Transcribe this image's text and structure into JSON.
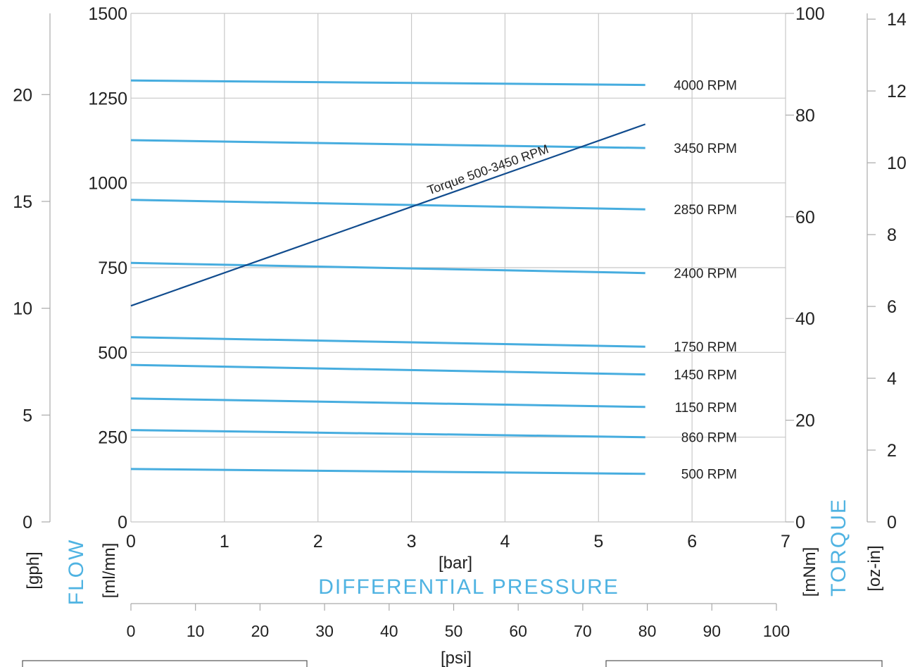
{
  "chart_data": {
    "type": "line",
    "x_bar": {
      "label": "[bar]",
      "ticks": [
        0,
        1,
        2,
        3,
        4,
        5,
        6,
        7
      ],
      "range": [
        0,
        7
      ]
    },
    "x_psi": {
      "label": "[psi]",
      "ticks": [
        0,
        10,
        20,
        30,
        40,
        50,
        60,
        70,
        80,
        90,
        100
      ],
      "range": [
        0,
        100
      ]
    },
    "x_title": "DIFFERENTIAL PRESSURE",
    "flow_title": "FLOW",
    "torque_title": "TORQUE",
    "y_mlmn": {
      "label": "[ml/mn]",
      "ticks": [
        0,
        250,
        500,
        750,
        1000,
        1250,
        1500
      ],
      "range": [
        0,
        1500
      ]
    },
    "y_gph": {
      "label": "[gph]",
      "ticks": [
        0,
        5,
        10,
        15,
        20
      ],
      "range": [
        0,
        23.8
      ]
    },
    "y_mNm": {
      "label": "[mNm]",
      "ticks": [
        0,
        20,
        40,
        60,
        80,
        100
      ],
      "range": [
        0,
        100
      ]
    },
    "y_ozin": {
      "label": "[oz-in]",
      "ticks": [
        0,
        2,
        4,
        6,
        8,
        10,
        12,
        14
      ],
      "range": [
        0,
        14.16
      ]
    },
    "series": [
      {
        "name": "4000 RPM",
        "axis": "flow",
        "x": [
          0,
          5.5
        ],
        "y": [
          1302,
          1289
        ]
      },
      {
        "name": "3450 RPM",
        "axis": "flow",
        "x": [
          0,
          5.5
        ],
        "y": [
          1126,
          1103
        ]
      },
      {
        "name": "2850 RPM",
        "axis": "flow",
        "x": [
          0,
          5.5
        ],
        "y": [
          950,
          922
        ]
      },
      {
        "name": "2400 RPM",
        "axis": "flow",
        "x": [
          0,
          5.5
        ],
        "y": [
          764,
          734
        ]
      },
      {
        "name": "1750 RPM",
        "axis": "flow",
        "x": [
          0,
          5.5
        ],
        "y": [
          545,
          517
        ]
      },
      {
        "name": "1450 RPM",
        "axis": "flow",
        "x": [
          0,
          5.5
        ],
        "y": [
          463,
          435
        ]
      },
      {
        "name": "1150 RPM",
        "axis": "flow",
        "x": [
          0,
          5.5
        ],
        "y": [
          364,
          339
        ]
      },
      {
        "name": "860 RPM",
        "axis": "flow",
        "x": [
          0,
          5.5
        ],
        "y": [
          271,
          250
        ]
      },
      {
        "name": "500 RPM",
        "axis": "flow",
        "x": [
          0,
          5.5
        ],
        "y": [
          156,
          142
        ]
      },
      {
        "name": "Torque 500-3450 RPM",
        "axis": "torque",
        "x": [
          0,
          5.5
        ],
        "y": [
          42.5,
          78.2
        ]
      }
    ],
    "colors": {
      "flow": "#47addf",
      "torque": "#114c8e",
      "title": "#4fb3e2"
    }
  }
}
